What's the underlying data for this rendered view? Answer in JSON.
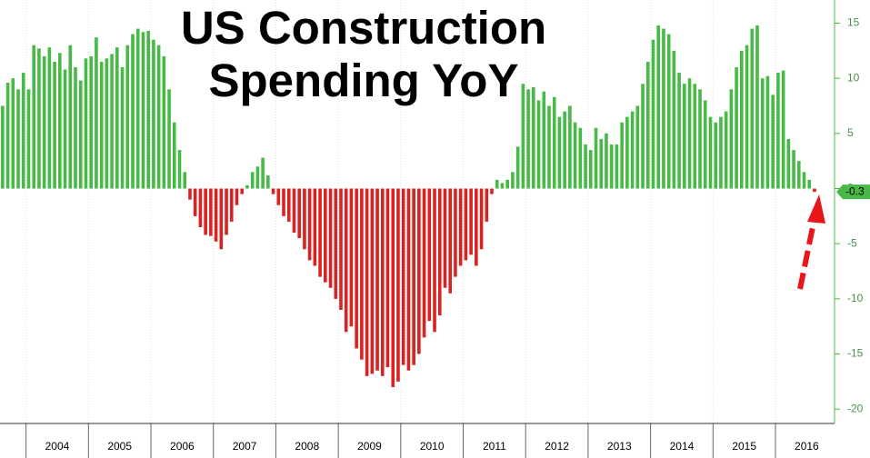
{
  "chart_data": {
    "type": "bar",
    "title": "US Construction Spending YoY",
    "year_labels": [
      "2004",
      "2005",
      "2006",
      "2007",
      "2008",
      "2009",
      "2010",
      "2011",
      "2012",
      "2013",
      "2014",
      "2015",
      "2016"
    ],
    "values": [
      7.5,
      9.6,
      10.0,
      9.0,
      10.5,
      9.0,
      13.0,
      12.7,
      12.0,
      12.8,
      11.5,
      12.3,
      10.8,
      13.0,
      11.0,
      9.8,
      11.8,
      12.0,
      13.7,
      11.5,
      11.8,
      12.2,
      12.8,
      11.0,
      13.0,
      14.0,
      14.5,
      14.2,
      14.3,
      13.5,
      13.0,
      12.0,
      9.0,
      6.0,
      3.5,
      1.5,
      -1.0,
      -2.5,
      -3.5,
      -4.2,
      -4.3,
      -4.8,
      -5.5,
      -4.2,
      -3.0,
      -1.5,
      -0.5,
      0.3,
      1.5,
      2.0,
      2.8,
      1.2,
      -0.5,
      -1.5,
      -2.5,
      -3.0,
      -4.0,
      -4.5,
      -5.5,
      -6.5,
      -7.0,
      -8.0,
      -8.5,
      -9.0,
      -10.0,
      -11.0,
      -13.0,
      -12.5,
      -14.5,
      -15.5,
      -17.0,
      -16.8,
      -16.5,
      -17.0,
      -16.2,
      -18.0,
      -17.5,
      -16.0,
      -16.5,
      -16.0,
      -15.0,
      -13.5,
      -12.0,
      -13.0,
      -11.5,
      -9.0,
      -9.5,
      -8.0,
      -7.0,
      -6.5,
      -6.0,
      -7.0,
      -5.5,
      -3.0,
      -0.5,
      0.8,
      0.5,
      0.8,
      1.5,
      3.8,
      9.5,
      9.0,
      9.2,
      8.0,
      8.8,
      7.5,
      8.3,
      6.5,
      7.0,
      7.5,
      6.0,
      5.5,
      4.0,
      3.5,
      5.5,
      4.5,
      5.0,
      4.0,
      4.0,
      6.0,
      6.5,
      7.0,
      7.5,
      9.5,
      11.5,
      13.5,
      14.8,
      14.5,
      14.0,
      12.5,
      10.5,
      9.5,
      10.0,
      9.5,
      9.0,
      8.0,
      6.5,
      6.0,
      6.5,
      7.0,
      9.0,
      11.0,
      12.5,
      13.0,
      14.5,
      14.8,
      10.0,
      10.2,
      8.5,
      10.5,
      10.7,
      4.5,
      3.5,
      2.5,
      1.5,
      0.8,
      -0.3
    ],
    "colors": {
      "positive": "#46b946",
      "negative": "#d92222"
    },
    "ylim": [
      -21.3,
      17.1
    ],
    "yticks": [
      -20,
      -15,
      -10,
      -5,
      0,
      5,
      10,
      15
    ],
    "grid": true
  }
}
